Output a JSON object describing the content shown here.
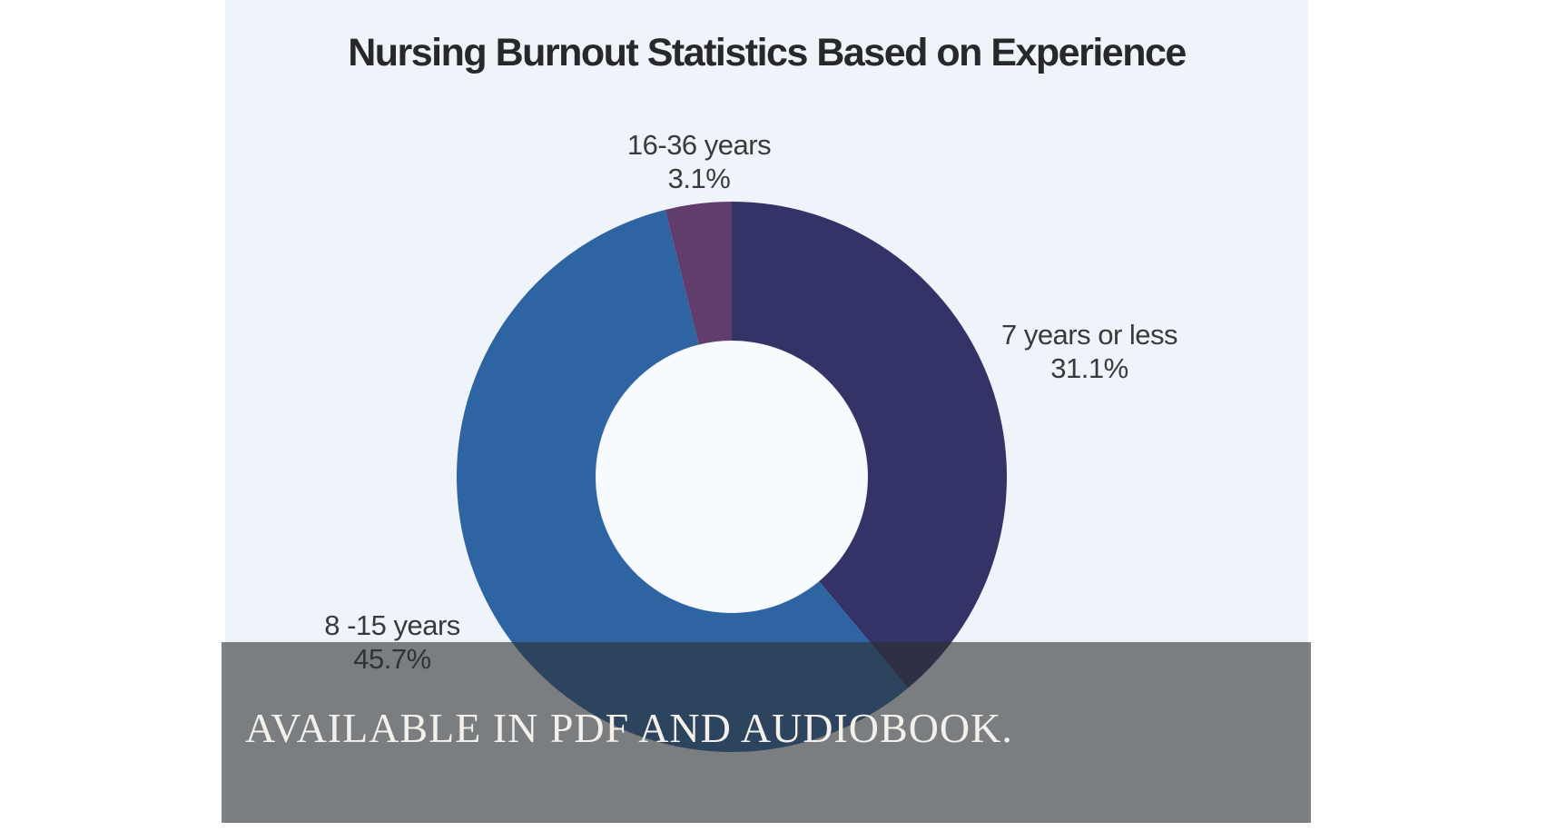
{
  "page": {
    "background": "#ffffff"
  },
  "card": {
    "background": "#eff4fa"
  },
  "chart_data": {
    "type": "pie",
    "subtype": "donut",
    "title": "Nursing Burnout Statistics Based on Experience",
    "categories": [
      "7 years or less",
      "8 -15 years",
      "16-36 years"
    ],
    "values": [
      31.1,
      45.7,
      3.1
    ],
    "value_labels": [
      "31.1%",
      "45.7%",
      "3.1%"
    ],
    "unit": "%",
    "colors": [
      "#333368",
      "#2f64a3",
      "#613d6e"
    ],
    "hole_color": "#f8fbfe",
    "start_angle_deg": 0,
    "direction": "clockwise",
    "legend": "none",
    "label_style": "outside two-line (category above percentage)"
  },
  "overlay": {
    "text": "AVAILABLE IN PDF AND AUDIOBOOK.",
    "background": "rgba(44,47,49,0.6)",
    "text_color": "#f4f1ec"
  }
}
